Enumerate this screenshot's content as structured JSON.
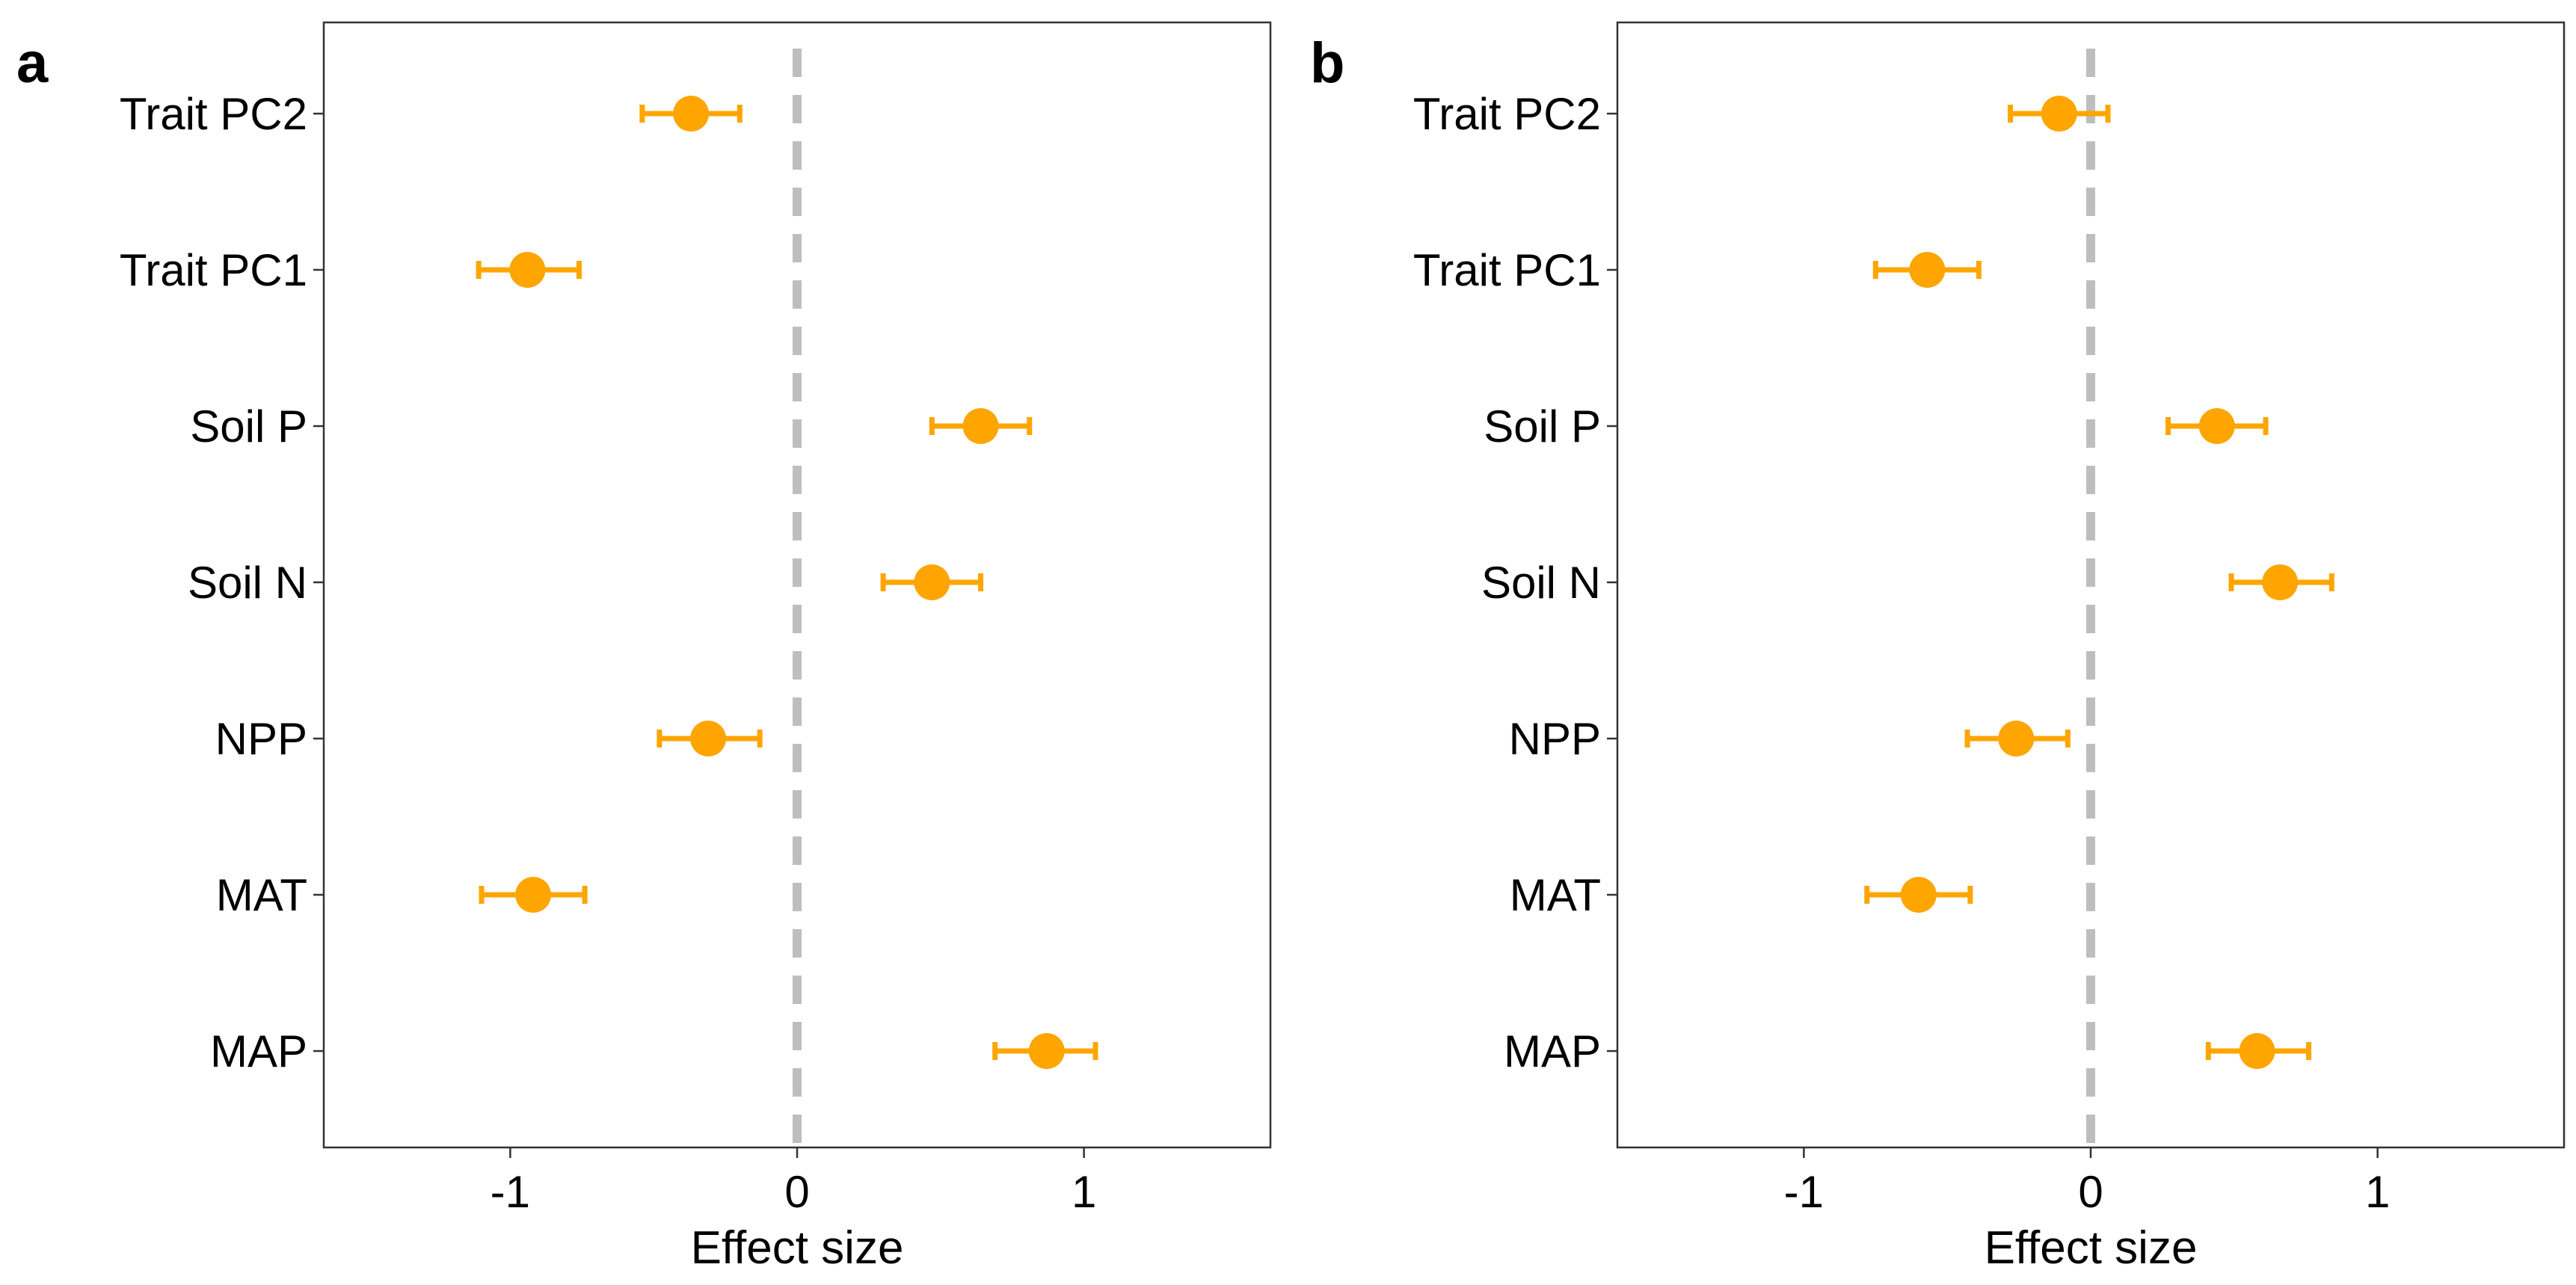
{
  "colors": {
    "point": "#FFA500",
    "zero_line": "#BEBEBE",
    "frame": "#333333",
    "text": "#000000"
  },
  "chart_data": [
    {
      "panel_label": "a",
      "type": "scatter",
      "style": "forest-plot with horizontal error bars",
      "categories": [
        "Trait PC2",
        "Trait PC1",
        "Soil P",
        "Soil N",
        "NPP",
        "MAT",
        "MAP"
      ],
      "values": [
        -0.37,
        -0.94,
        0.64,
        0.47,
        -0.31,
        -0.92,
        0.87
      ],
      "ci_low": [
        -0.54,
        -1.11,
        0.47,
        0.3,
        -0.48,
        -1.1,
        0.69
      ],
      "ci_high": [
        -0.2,
        -0.76,
        0.81,
        0.64,
        -0.13,
        -0.74,
        1.04
      ],
      "xlabel": "Effect size",
      "ylabel": "",
      "xlim": [
        -1.65,
        1.65
      ],
      "xticks": [
        -1,
        0,
        1
      ],
      "xtick_labels": [
        "-1",
        "0",
        "1"
      ],
      "reference_line": 0,
      "grid": false,
      "legend": "none"
    },
    {
      "panel_label": "b",
      "type": "scatter",
      "style": "forest-plot with horizontal error bars",
      "categories": [
        "Trait PC2",
        "Trait PC1",
        "Soil P",
        "Soil N",
        "NPP",
        "MAT",
        "MAP"
      ],
      "values": [
        -0.11,
        -0.57,
        0.44,
        0.66,
        -0.26,
        -0.6,
        0.58
      ],
      "ci_low": [
        -0.28,
        -0.75,
        0.27,
        0.49,
        -0.43,
        -0.78,
        0.41
      ],
      "ci_high": [
        0.06,
        -0.39,
        0.61,
        0.84,
        -0.08,
        -0.42,
        0.76
      ],
      "xlabel": "Effect size",
      "ylabel": "",
      "xlim": [
        -1.65,
        1.65
      ],
      "xticks": [
        -1,
        0,
        1
      ],
      "xtick_labels": [
        "-1",
        "0",
        "1"
      ],
      "reference_line": 0,
      "grid": false,
      "legend": "none"
    }
  ]
}
